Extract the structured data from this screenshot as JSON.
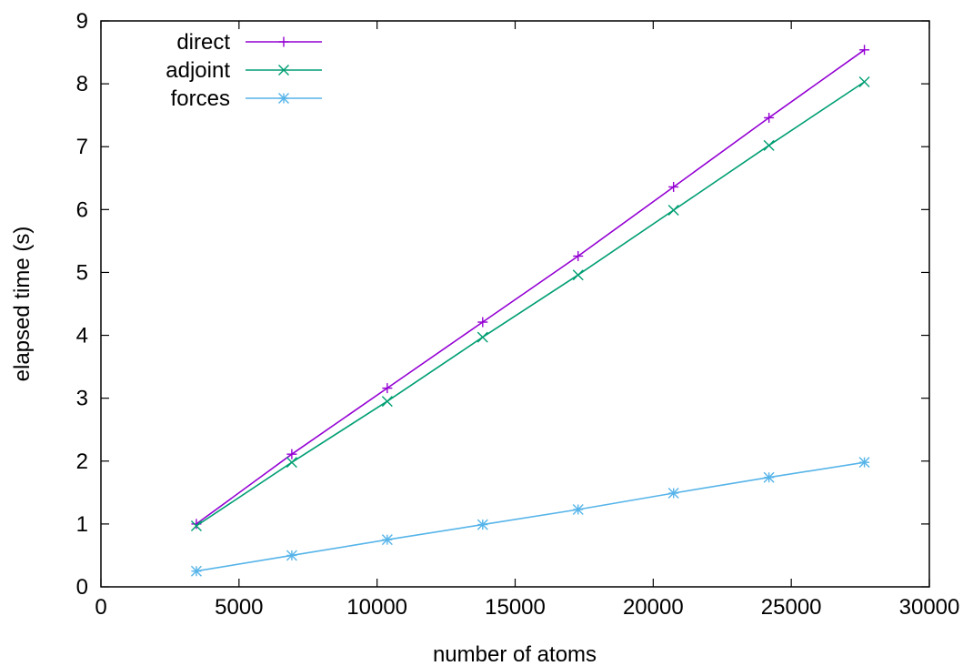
{
  "chart_data": {
    "type": "line",
    "title": "",
    "xlabel": "number of atoms",
    "ylabel": "elapsed time (s)",
    "xlim": [
      0,
      30000
    ],
    "ylim": [
      0,
      9
    ],
    "x_ticks": [
      0,
      5000,
      10000,
      15000,
      20000,
      25000,
      30000
    ],
    "y_ticks": [
      0,
      1,
      2,
      3,
      4,
      5,
      6,
      7,
      8,
      9
    ],
    "grid": false,
    "legend_position": "top-left",
    "x": [
      3456,
      6912,
      10368,
      13824,
      17280,
      20736,
      24192,
      27648
    ],
    "series": [
      {
        "name": "direct",
        "color": "#9400d3",
        "marker": "plus",
        "values": [
          1.0,
          2.11,
          3.16,
          4.21,
          5.26,
          6.36,
          7.46,
          8.54
        ]
      },
      {
        "name": "adjoint",
        "color": "#009e73",
        "marker": "cross",
        "values": [
          0.97,
          1.98,
          2.95,
          3.97,
          4.96,
          5.99,
          7.02,
          8.03
        ]
      },
      {
        "name": "forces",
        "color": "#56b4e9",
        "marker": "star",
        "values": [
          0.25,
          0.5,
          0.75,
          0.99,
          1.23,
          1.49,
          1.74,
          1.98
        ]
      }
    ]
  }
}
